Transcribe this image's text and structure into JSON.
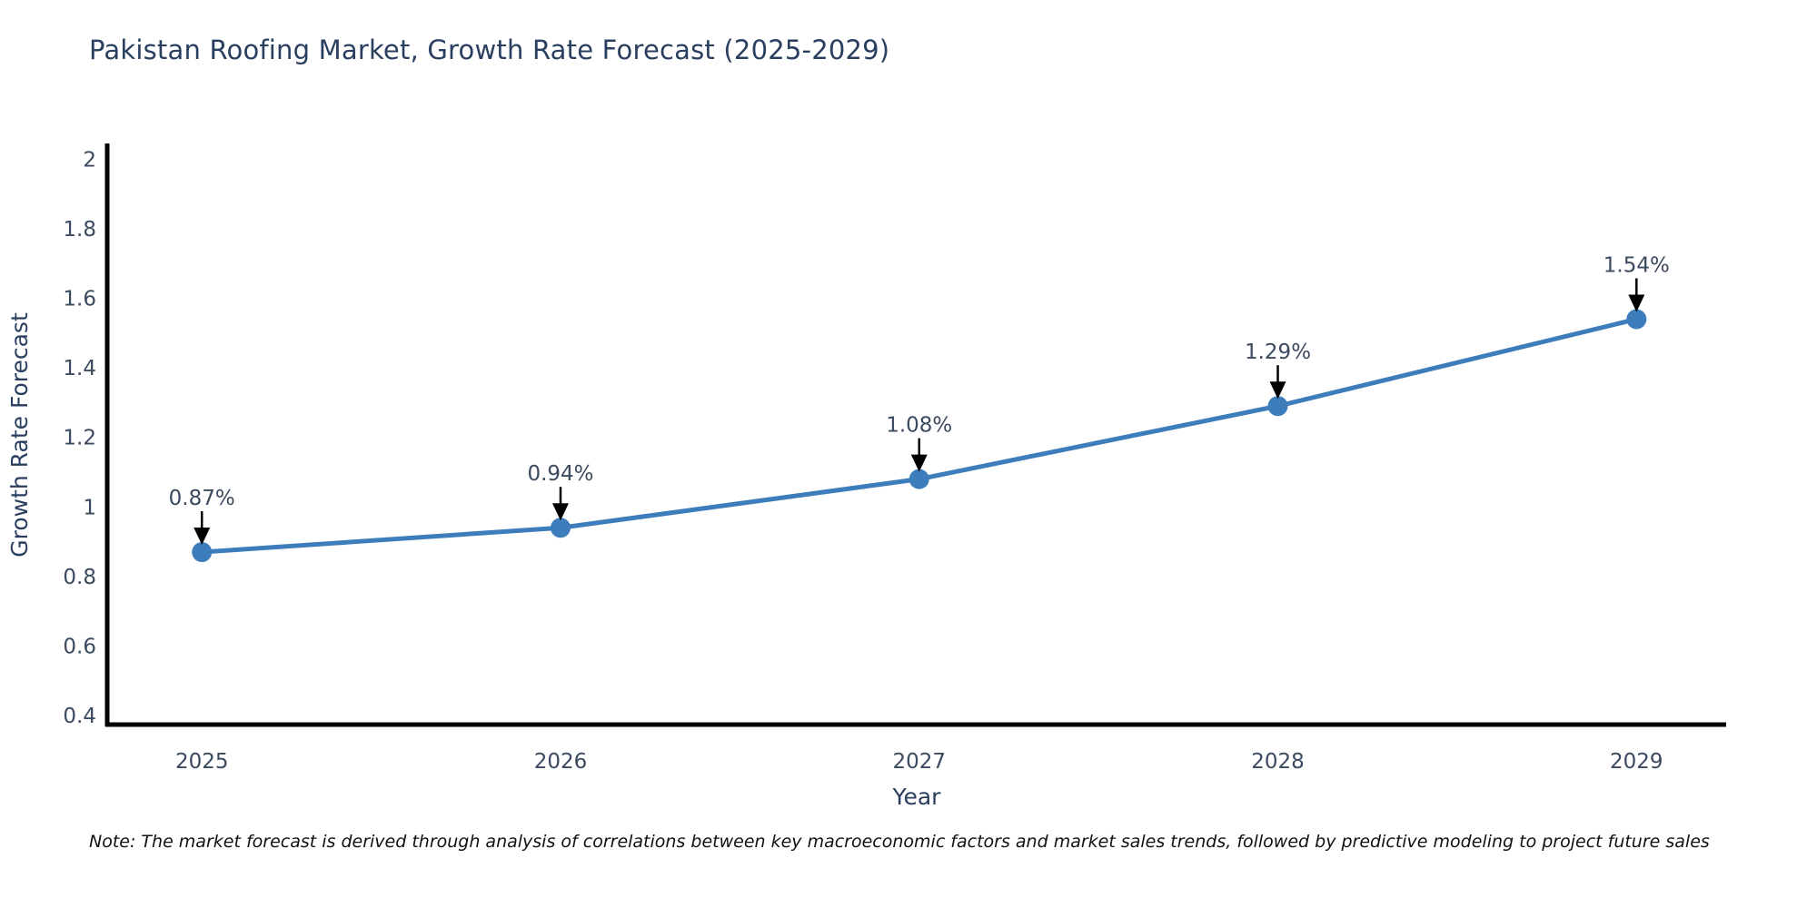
{
  "title": "Pakistan Roofing Market, Growth Rate Forecast (2025-2029)",
  "note": "Note: The market forecast is derived through analysis of correlations between key macroeconomic factors and market sales trends, followed by predictive modeling to project future sales",
  "chart_data": {
    "type": "line",
    "title": "Pakistan Roofing Market, Growth Rate Forecast (2025-2029)",
    "xlabel": "Year",
    "ylabel": "Growth Rate Forecast",
    "x": [
      2025,
      2026,
      2027,
      2028,
      2029
    ],
    "x_tick_labels": [
      "2025",
      "2026",
      "2027",
      "2028",
      "2029"
    ],
    "series": [
      {
        "name": "Growth Rate Forecast",
        "values": [
          0.87,
          0.94,
          1.08,
          1.29,
          1.54
        ]
      }
    ],
    "point_labels": [
      "0.87%",
      "0.94%",
      "1.08%",
      "1.29%",
      "1.54%"
    ],
    "y_ticks": [
      0.4,
      0.6,
      0.8,
      1,
      1.2,
      1.4,
      1.6,
      1.8,
      2
    ],
    "y_tick_labels": [
      "0.4",
      "0.6",
      "0.8",
      "1",
      "1.2",
      "1.4",
      "1.6",
      "1.8",
      "2"
    ],
    "xlim": [
      2024.736,
      2029.25
    ],
    "ylim": [
      0.374,
      2.04
    ],
    "grid": false,
    "legend_position": "none",
    "colors": {
      "line": "#3d7dbc",
      "marker": "#3d7dbc",
      "axis": "#000000",
      "tick_text": "#3b4a5f",
      "title_text": "#2a3f5f",
      "annotation_text": "#3b4a5f",
      "annotation_arrow": "#000000",
      "note_text": "#111111",
      "background": "#ffffff"
    }
  }
}
